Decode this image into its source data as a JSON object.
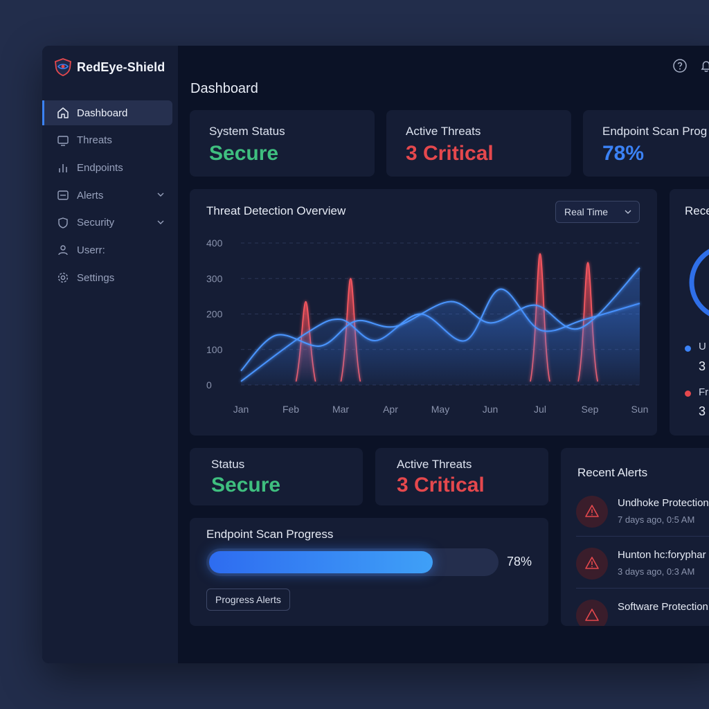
{
  "brand": {
    "name": "RedEye-Shield",
    "logo_icon": "shield-eye-icon"
  },
  "sidebar": {
    "items": [
      {
        "label": "Dashboard",
        "icon": "home-icon",
        "active": true
      },
      {
        "label": "Threats",
        "icon": "monitor-icon"
      },
      {
        "label": "Endpoints",
        "icon": "bars-icon"
      },
      {
        "label": "Alerts",
        "icon": "alert-box-icon",
        "expandable": true
      },
      {
        "label": "Security",
        "icon": "shield-icon",
        "expandable": true
      },
      {
        "label": "Userr:",
        "icon": "user-icon"
      },
      {
        "label": "Settings",
        "icon": "gear-icon"
      }
    ]
  },
  "header": {
    "title": "Dashboard",
    "icons": [
      "help-icon",
      "bell-icon"
    ]
  },
  "top_stats": [
    {
      "label": "System Status",
      "value": "Secure",
      "color": "#3fbf7f"
    },
    {
      "label": "Active Threats",
      "value": "3 Critical",
      "color": "#e5484d"
    },
    {
      "label": "Endpoint Scan Prog",
      "value": "78%",
      "color": "#3b82f6"
    }
  ],
  "threat_chart": {
    "title": "Threat Detection Overview",
    "range_select": "Real Time",
    "chart_data": {
      "type": "area",
      "categories": [
        "Jan",
        "Feb",
        "Mar",
        "Apr",
        "May",
        "Jun",
        "Jul",
        "Sep",
        "Sun"
      ],
      "yticks": [
        0,
        100,
        200,
        300,
        400
      ],
      "ylim": [
        0,
        400
      ],
      "grid": true,
      "series": [
        {
          "x": [
            0,
            1.3,
            2,
            2.7,
            3.6,
            4.5,
            5.2,
            6,
            6.9,
            8
          ],
          "values": [
            10,
            145,
            185,
            125,
            200,
            125,
            270,
            155,
            185,
            230
          ],
          "color": "#3b82f6"
        },
        {
          "x": [
            0,
            0.7,
            1.6,
            2.3,
            3.1,
            4.2,
            5,
            5.9,
            6.8,
            8
          ],
          "values": [
            40,
            140,
            110,
            180,
            165,
            235,
            175,
            225,
            160,
            330
          ],
          "color": "#3b82f6"
        },
        {
          "x": [
            1.3,
            2.2,
            6,
            6.96
          ],
          "values": [
            235,
            300,
            370,
            345
          ],
          "color": "#e5484d",
          "spikes": true
        }
      ]
    }
  },
  "right_panel": {
    "title": "Rece",
    "legend": [
      {
        "label": "U",
        "value": "3",
        "color": "#3b82f6"
      },
      {
        "label": "Fr",
        "value": "3",
        "color": "#e5484d"
      }
    ]
  },
  "bottom_stats": [
    {
      "label": "Status",
      "value": "Secure",
      "color": "#3fbf7f"
    },
    {
      "label": "Active Threats",
      "value": "3 Critical",
      "color": "#e5484d"
    }
  ],
  "scan": {
    "title": "Endpoint Scan Progress",
    "percent": 78,
    "percent_label": "78%",
    "button": "Progress Alerts"
  },
  "recent_alerts": {
    "title": "Recent Alerts",
    "items": [
      {
        "title": "Undhoke Protection",
        "time": "7 days ago, 0:5 AM",
        "icon": "warning-icon"
      },
      {
        "title": "Hunton hc:foryphar",
        "time": "3 days ago, 0:3 AM",
        "icon": "warning-icon"
      },
      {
        "title": "Software Protection",
        "time": "",
        "icon": "warning-icon"
      }
    ]
  }
}
